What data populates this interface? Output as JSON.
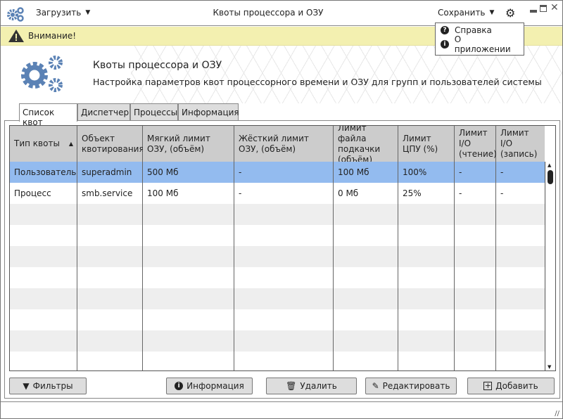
{
  "titlebar": {
    "load_label": "Загрузить",
    "title": "Квоты процессора и ОЗУ",
    "save_label": "Сохранить"
  },
  "menu": {
    "items": [
      {
        "label": "Справка",
        "icon": "question-icon"
      },
      {
        "label": "О приложении",
        "icon": "info-icon"
      }
    ]
  },
  "warning": {
    "text": "Внимание!"
  },
  "header": {
    "title": "Квоты процессора и ОЗУ",
    "subtitle": "Настройка параметров квот процессорного времени и ОЗУ для групп и пользователей системы"
  },
  "tabs": [
    {
      "label": "Список квот",
      "active": true
    },
    {
      "label": "Диспетчер"
    },
    {
      "label": "Процессы"
    },
    {
      "label": "Информация"
    }
  ],
  "table": {
    "columns": [
      "Тип квоты",
      "Объект квотирования",
      "Мягкий лимит ОЗУ, (объём)",
      "Жёсткий лимит ОЗУ, (объём)",
      "Лимит файла подкачки (объём)",
      "Лимит ЦПУ (%)",
      "Лимит I/O (чтение)",
      "Лимит I/O (запись)"
    ],
    "sort_column": "Тип квоты",
    "sort_direction": "ascending",
    "rows": [
      [
        "Пользователь",
        "superadmin",
        "500 Мб",
        "-",
        "100 Мб",
        "100%",
        "-",
        "-"
      ],
      [
        "Процесс",
        "smb.service",
        "100 Мб",
        "-",
        "0 Мб",
        "25%",
        "-",
        "-"
      ]
    ],
    "selected_row": 0
  },
  "buttons": {
    "filters": "Фильтры",
    "info": "Информация",
    "delete": "Удалить",
    "edit": "Редактировать",
    "add": "Добавить"
  },
  "colors": {
    "accent": "#5b82b5",
    "selection": "#93bbef",
    "warning_bg": "#f3f0b0"
  }
}
